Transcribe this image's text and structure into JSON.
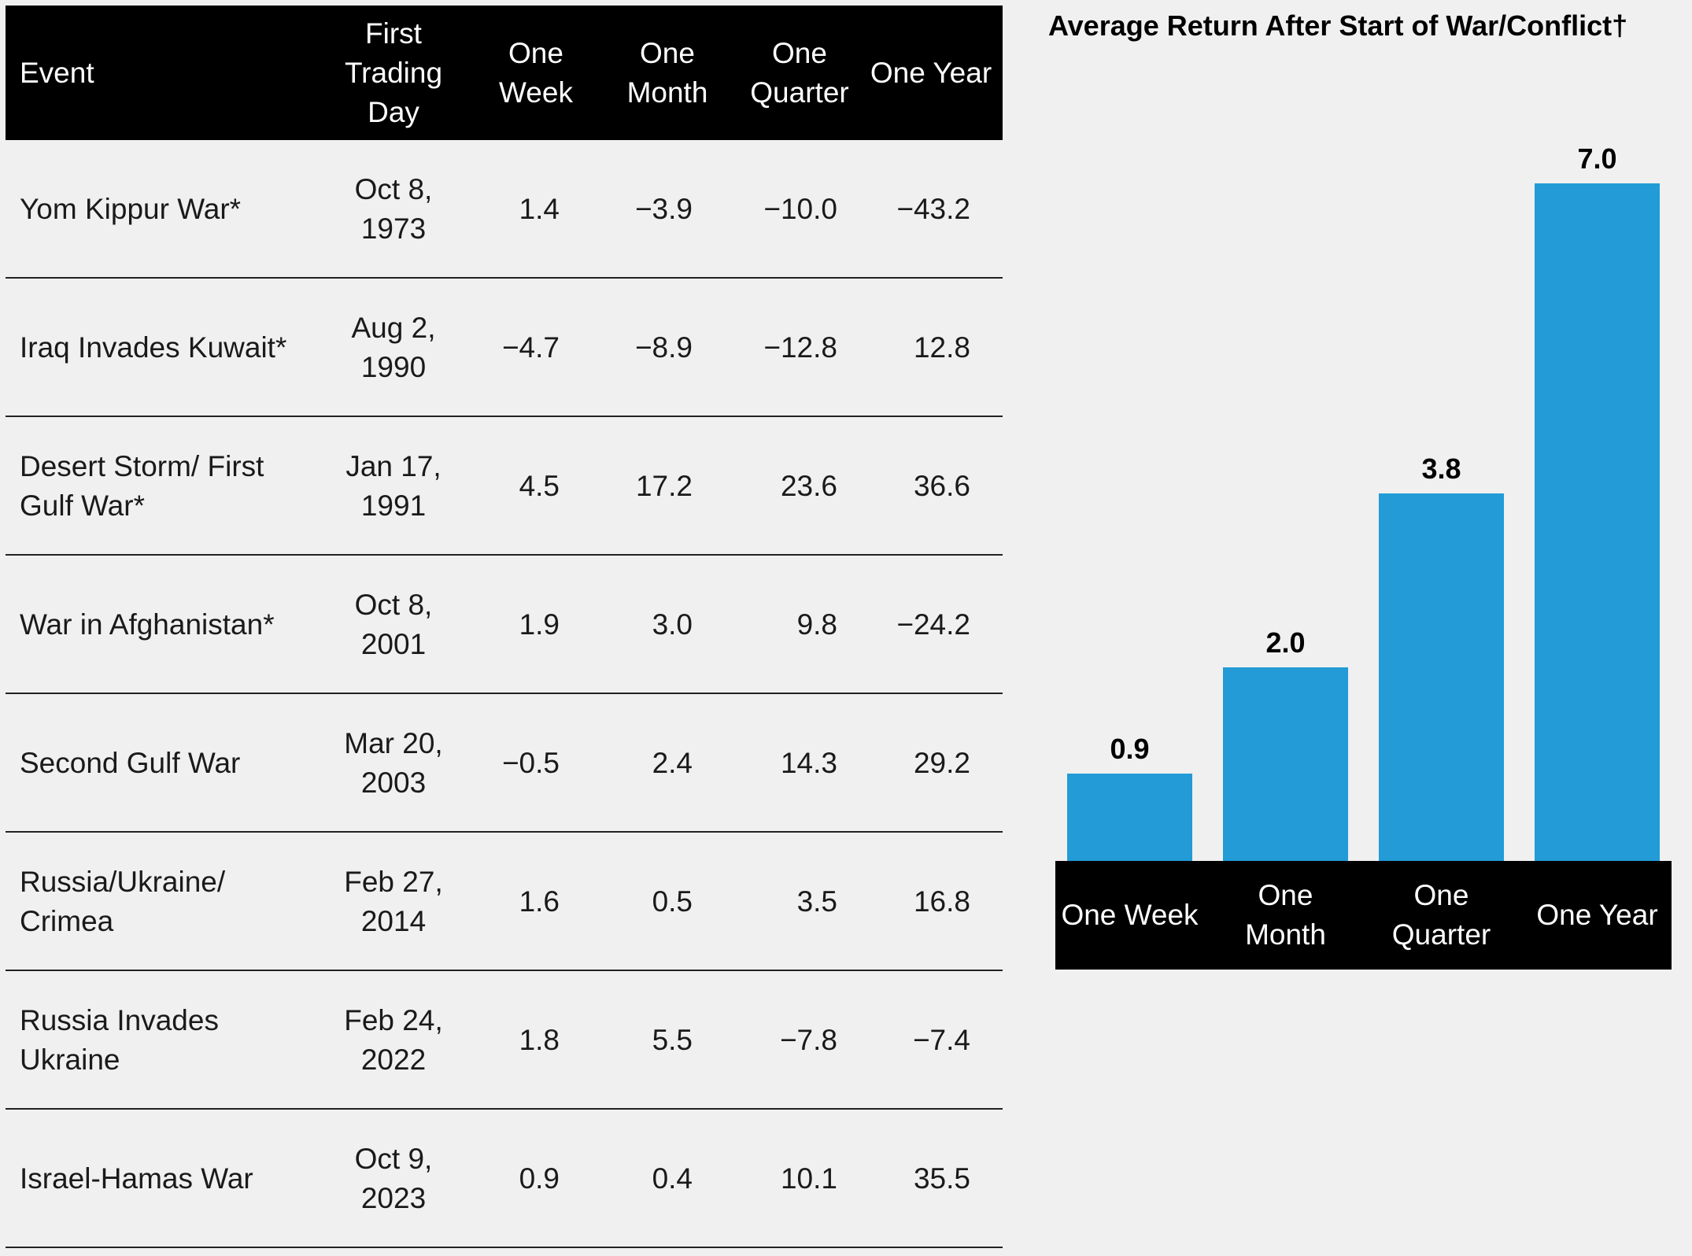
{
  "table": {
    "header": [
      "Event",
      "First Trading Day",
      "One Week",
      "One Month",
      "One Quarter",
      "One Year"
    ],
    "rows": [
      [
        "Yom Kippur War*",
        "Oct 8, 1973",
        "1.4",
        "−3.9",
        "−10.0",
        "−43.2"
      ],
      [
        "Iraq Invades Kuwait*",
        "Aug 2, 1990",
        "−4.7",
        "−8.9",
        "−12.8",
        "12.8"
      ],
      [
        "Desert Storm/ First Gulf War*",
        "Jan 17, 1991",
        "4.5",
        "17.2",
        "23.6",
        "36.6"
      ],
      [
        "War in Afghanistan*",
        "Oct 8, 2001",
        "1.9",
        "3.0",
        "9.8",
        "−24.2"
      ],
      [
        "Second Gulf War",
        "Mar 20, 2003",
        "−0.5",
        "2.4",
        "14.3",
        "29.2"
      ],
      [
        "Russia/Ukraine/ Crimea",
        "Feb 27, 2014",
        "1.6",
        "0.5",
        "3.5",
        "16.8"
      ],
      [
        "Russia Invades Ukraine",
        "Feb 24, 2022",
        "1.8",
        "5.5",
        "−7.8",
        "−7.4"
      ],
      [
        "Israel-Hamas War",
        "Oct 9, 2023",
        "0.9",
        "0.4",
        "10.1",
        "35.5"
      ]
    ]
  },
  "chart_data": {
    "type": "bar",
    "title": "Average Return After Start of War/Conflict†",
    "categories": [
      "One Week",
      "One Month",
      "One Quarter",
      "One Year"
    ],
    "values": [
      0.9,
      2.0,
      3.8,
      7.0
    ],
    "value_labels": [
      "0.9",
      "2.0",
      "3.8",
      "7.0"
    ],
    "color": "#229bd6"
  }
}
